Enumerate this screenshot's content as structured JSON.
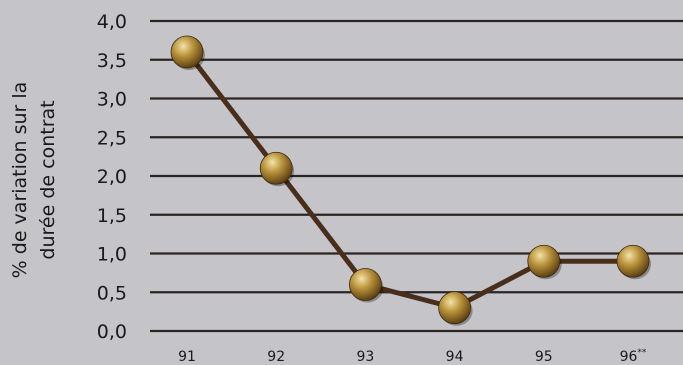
{
  "chart_data": {
    "type": "line",
    "title": "",
    "xlabel": "",
    "ylabel_line1": "% de variation sur la",
    "ylabel_line2": "durée de contrat",
    "categories": [
      "91",
      "92",
      "93",
      "94",
      "95",
      "96"
    ],
    "x_tick_labels": [
      {
        "base": "91",
        "sup": ""
      },
      {
        "base": "92",
        "sup": ""
      },
      {
        "base": "93",
        "sup": ""
      },
      {
        "base": "94",
        "sup": ""
      },
      {
        "base": "95",
        "sup": ""
      },
      {
        "base": "96",
        "sup": "**"
      }
    ],
    "values": [
      3.6,
      2.1,
      0.6,
      0.3,
      0.9,
      0.9
    ],
    "ylim": [
      0,
      4
    ],
    "yticks": [
      "0,0",
      "0,5",
      "1,0",
      "1,5",
      "2,0",
      "2,5",
      "3,0",
      "3,5",
      "4,0"
    ],
    "grid": true,
    "colors": {
      "line": "#4a2e1c",
      "gridline": "#2a2622",
      "marker_light": "#f3e3a8",
      "marker_mid": "#b8923a",
      "marker_dark": "#5a3e12"
    }
  }
}
